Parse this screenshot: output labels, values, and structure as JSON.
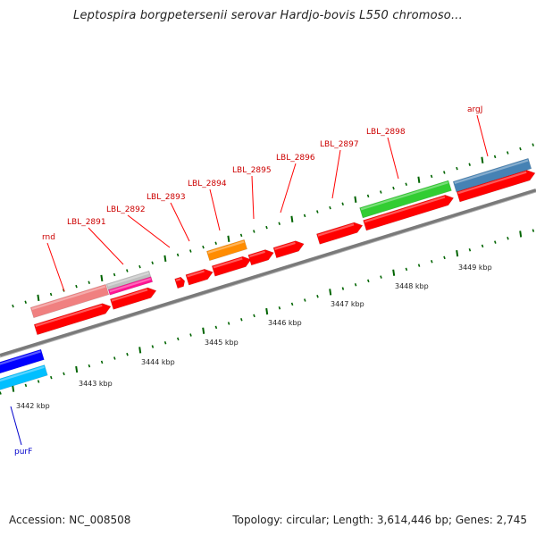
{
  "title": "Leptospira borgpetersenii serovar Hardjo-bovis L550 chromoso...",
  "footer": {
    "accession": "Accession: NC_008508",
    "summary": "Topology: circular; Length: 3,614,446 bp; Genes: 2,745"
  },
  "scale": {
    "labels": [
      "3442 kbp",
      "3443 kbp",
      "3444 kbp",
      "3445 kbp",
      "3446 kbp",
      "3447 kbp",
      "3448 kbp",
      "3449 kbp"
    ]
  },
  "genes": {
    "labels": [
      "rnd",
      "LBL_2891",
      "LBL_2892",
      "LBL_2893",
      "LBL_2894",
      "LBL_2895",
      "LBL_2896",
      "LBL_2897",
      "LBL_2898",
      "argJ",
      "purF"
    ]
  },
  "colors": {
    "cds": "#ff0000",
    "backbone": "#808080",
    "tick": "#006400",
    "label_red": "#cc0000",
    "label_blue": "#0000cc",
    "pink": "#f08080",
    "magenta": "#ff1493",
    "gray_gene": "#c0c0c0",
    "orange": "#ff8c00",
    "green": "#32cd32",
    "steel": "#4682b4",
    "blue": "#0000ff",
    "cyan": "#00bfff"
  }
}
